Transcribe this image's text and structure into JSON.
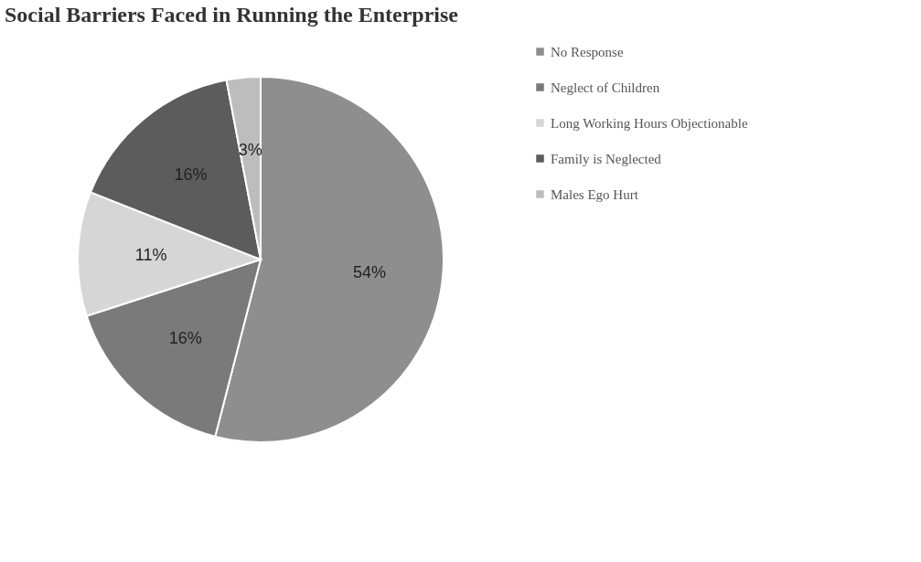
{
  "chart_data": {
    "type": "pie",
    "title": "Social Barriers Faced in Running the Enterprise",
    "categories": [
      "No Response",
      "Neglect of Children",
      "Long Working Hours Objectionable",
      "Family is Neglected",
      "Males Ego Hurt"
    ],
    "values": [
      54,
      16,
      11,
      16,
      3
    ],
    "value_labels": [
      "54%",
      "16%",
      "11%",
      "16%",
      "3%"
    ],
    "colors": [
      "#8e8e8e",
      "#7a7a7a",
      "#d6d6d6",
      "#5c5c5c",
      "#bdbdbd"
    ],
    "legend": "right"
  }
}
